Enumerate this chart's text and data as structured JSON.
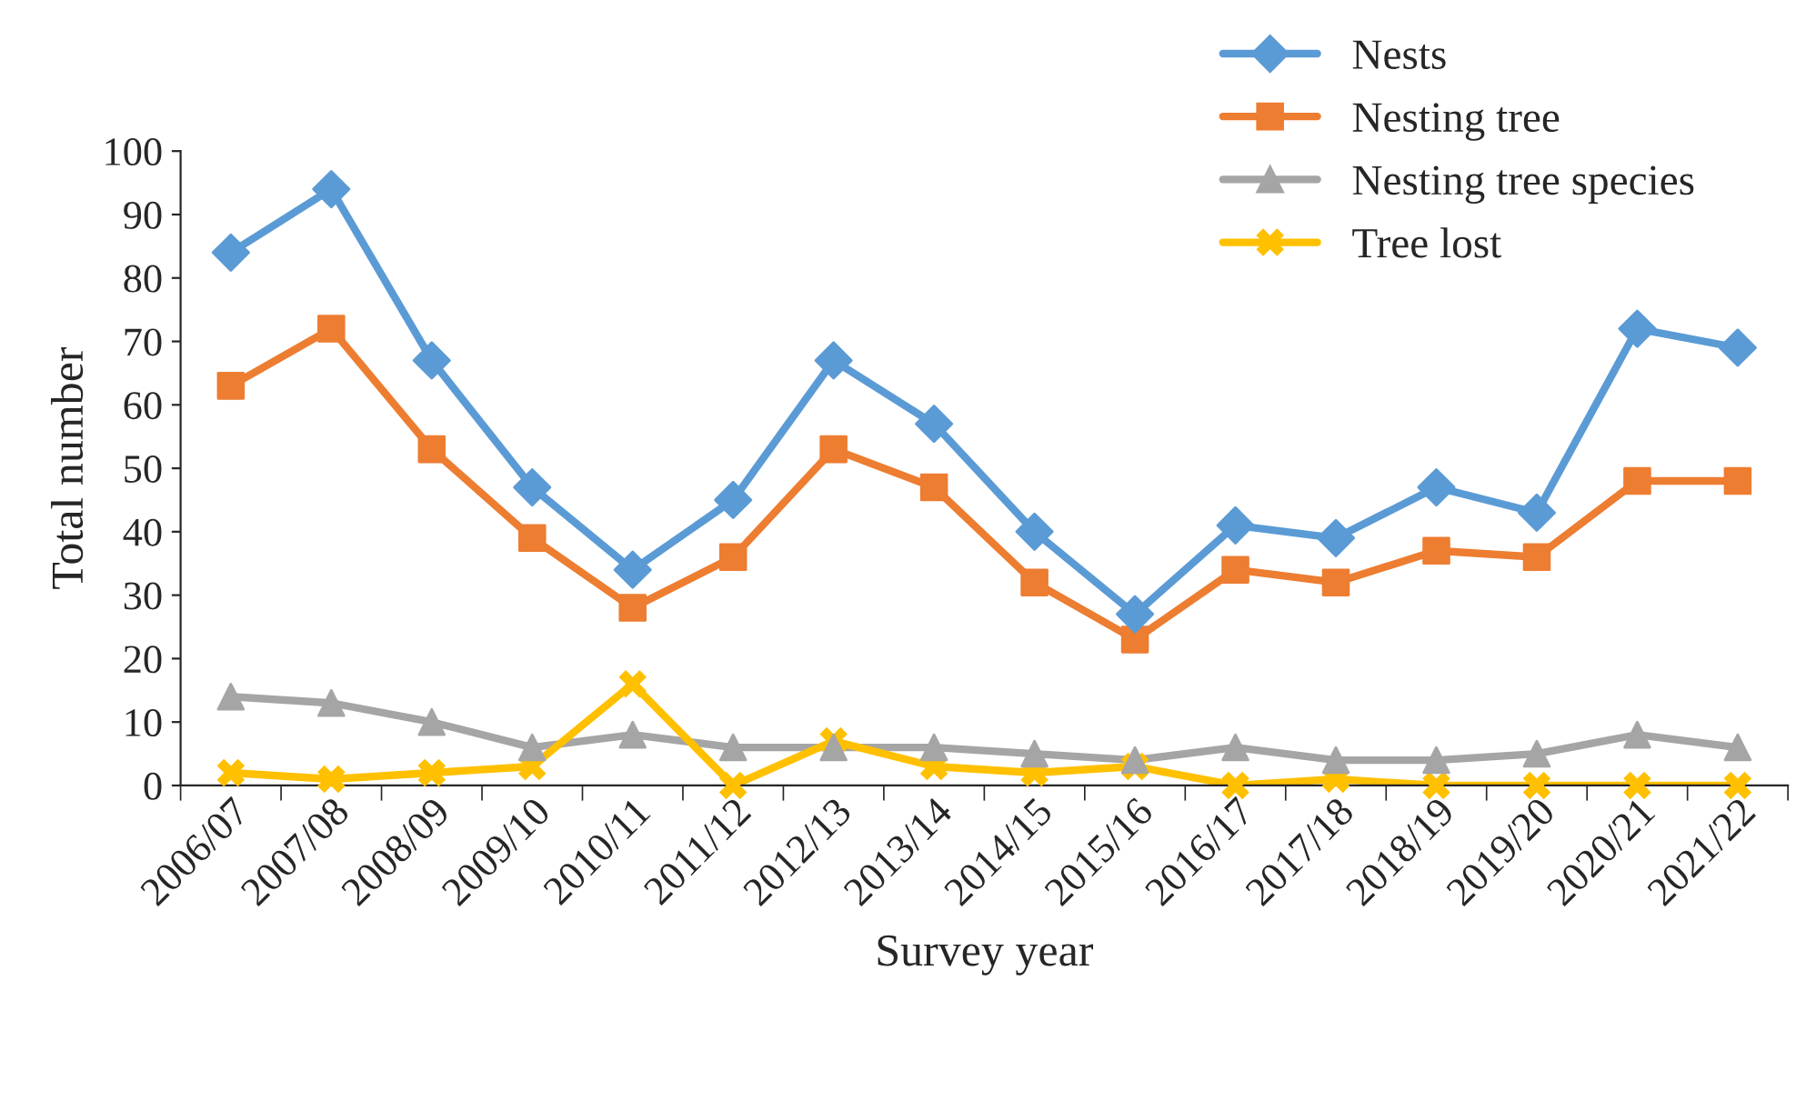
{
  "chart_data": {
    "type": "line",
    "xlabel": "Survey year",
    "ylabel": "Total number",
    "categories": [
      "2006/07",
      "2007/08",
      "2008/09",
      "2009/10",
      "2010/11",
      "2011/12",
      "2012/13",
      "2013/14",
      "2014/15",
      "2015/16",
      "2016/17",
      "2017/18",
      "2018/19",
      "2019/20",
      "2020/21",
      "2021/22"
    ],
    "series": [
      {
        "name": "Nests",
        "color": "#5b9bd5",
        "marker": "diamond",
        "values": [
          84,
          94,
          67,
          47,
          34,
          45,
          67,
          57,
          40,
          27,
          41,
          39,
          47,
          43,
          72,
          69
        ]
      },
      {
        "name": "Nesting tree",
        "color": "#ed7d31",
        "marker": "square",
        "values": [
          63,
          72,
          53,
          39,
          28,
          36,
          53,
          47,
          32,
          23,
          34,
          32,
          37,
          36,
          48,
          48
        ]
      },
      {
        "name": "Nesting tree species",
        "color": "#a5a5a5",
        "marker": "triangle",
        "values": [
          14,
          13,
          10,
          6,
          8,
          6,
          6,
          6,
          5,
          4,
          6,
          4,
          4,
          5,
          8,
          6
        ]
      },
      {
        "name": "Tree lost",
        "color": "#ffc000",
        "marker": "cross",
        "values": [
          2,
          1,
          2,
          3,
          16,
          0,
          7,
          3,
          2,
          3,
          0,
          1,
          0,
          0,
          0,
          0
        ]
      }
    ],
    "ylim": [
      0,
      100
    ],
    "yticks": [
      0,
      10,
      20,
      30,
      40,
      50,
      60,
      70,
      80,
      90,
      100
    ],
    "grid": false,
    "legend": "top right"
  }
}
